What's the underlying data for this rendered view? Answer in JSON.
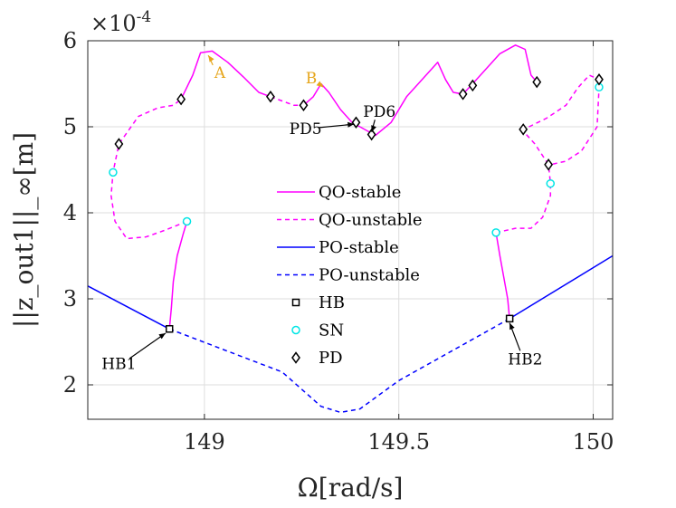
{
  "chart_data": {
    "type": "line",
    "xlabel": "Ω[rad/s]",
    "ylabel": "||z_out1||_∞[m]",
    "y_multiplier_label": "×10",
    "y_multiplier_exp": "-4",
    "xlim": [
      148.7,
      150.05
    ],
    "ylim": [
      1.6,
      6.0
    ],
    "xticks": [
      149,
      149.5,
      150
    ],
    "xtick_labels": [
      "149",
      "149.5",
      "150"
    ],
    "yticks": [
      2,
      3,
      4,
      5,
      6
    ],
    "ytick_labels": [
      "2",
      "3",
      "4",
      "5",
      "6"
    ],
    "grid": true,
    "legend_position": "center",
    "colors": {
      "qo": "#ff00ff",
      "po": "#0000ff",
      "sn": "#00e5e5",
      "marker": "#000000",
      "annot_orange": "#e6a51a",
      "annot_black": "#000000"
    },
    "series": [
      {
        "name": "QO-stable",
        "style": "solid",
        "color": "#ff00ff",
        "segments": [
          [
            [
              148.91,
              2.65
            ],
            [
              148.915,
              2.9
            ],
            [
              148.92,
              3.2
            ],
            [
              148.93,
              3.5
            ],
            [
              148.945,
              3.75
            ],
            [
              148.955,
              3.9
            ]
          ],
          [
            [
              148.94,
              5.32
            ],
            [
              148.97,
              5.6
            ],
            [
              148.99,
              5.86
            ],
            [
              149.02,
              5.88
            ],
            [
              149.06,
              5.75
            ],
            [
              149.1,
              5.58
            ],
            [
              149.14,
              5.4
            ],
            [
              149.17,
              5.35
            ]
          ],
          [
            [
              149.255,
              5.25
            ],
            [
              149.28,
              5.35
            ],
            [
              149.3,
              5.5
            ],
            [
              149.32,
              5.4
            ],
            [
              149.35,
              5.2
            ],
            [
              149.38,
              5.05
            ],
            [
              149.4,
              5.0
            ],
            [
              149.44,
              4.9
            ],
            [
              149.48,
              5.05
            ],
            [
              149.52,
              5.35
            ],
            [
              149.56,
              5.55
            ],
            [
              149.6,
              5.75
            ],
            [
              149.62,
              5.55
            ],
            [
              149.64,
              5.4
            ],
            [
              149.665,
              5.38
            ],
            [
              149.69,
              5.5
            ],
            [
              149.72,
              5.65
            ],
            [
              149.76,
              5.85
            ],
            [
              149.8,
              5.95
            ],
            [
              149.825,
              5.9
            ],
            [
              149.84,
              5.6
            ],
            [
              149.855,
              5.52
            ]
          ],
          [
            [
              149.785,
              2.77
            ],
            [
              149.78,
              3.0
            ],
            [
              149.77,
              3.25
            ],
            [
              149.76,
              3.5
            ],
            [
              149.75,
              3.77
            ]
          ]
        ]
      },
      {
        "name": "QO-unstable",
        "style": "dashed",
        "color": "#ff00ff",
        "segments": [
          [
            [
              148.955,
              3.9
            ],
            [
              148.9,
              3.8
            ],
            [
              148.85,
              3.72
            ],
            [
              148.8,
              3.7
            ],
            [
              148.77,
              3.9
            ],
            [
              148.76,
              4.2
            ],
            [
              148.765,
              4.47
            ],
            [
              148.78,
              4.8
            ],
            [
              148.83,
              5.12
            ],
            [
              148.88,
              5.22
            ],
            [
              148.92,
              5.25
            ],
            [
              148.94,
              5.32
            ]
          ],
          [
            [
              149.17,
              5.35
            ],
            [
              149.2,
              5.3
            ],
            [
              149.23,
              5.25
            ],
            [
              149.255,
              5.25
            ]
          ],
          [
            [
              149.75,
              3.77
            ],
            [
              149.8,
              3.82
            ],
            [
              149.84,
              3.82
            ],
            [
              149.87,
              3.95
            ],
            [
              149.89,
              4.2
            ],
            [
              149.89,
              4.34
            ],
            [
              149.885,
              4.56
            ],
            [
              149.85,
              4.8
            ],
            [
              149.82,
              4.95
            ],
            [
              149.835,
              5.0
            ],
            [
              149.88,
              5.1
            ],
            [
              149.93,
              5.25
            ],
            [
              149.96,
              5.45
            ],
            [
              149.99,
              5.6
            ],
            [
              150.015,
              5.55
            ],
            [
              150.015,
              5.46
            ],
            [
              150.01,
              5.0
            ],
            [
              149.97,
              4.72
            ],
            [
              149.93,
              4.6
            ],
            [
              149.89,
              4.56
            ]
          ]
        ]
      },
      {
        "name": "PO-stable",
        "style": "solid",
        "color": "#0000ff",
        "segments": [
          [
            [
              148.7,
              3.15
            ],
            [
              148.91,
              2.65
            ]
          ],
          [
            [
              149.785,
              2.77
            ],
            [
              150.05,
              3.5
            ]
          ]
        ]
      },
      {
        "name": "PO-unstable",
        "style": "dashed",
        "color": "#0000ff",
        "segments": [
          [
            [
              148.91,
              2.65
            ],
            [
              149.2,
              2.15
            ],
            [
              149.3,
              1.75
            ],
            [
              149.35,
              1.68
            ],
            [
              149.4,
              1.72
            ],
            [
              149.5,
              2.05
            ],
            [
              149.785,
              2.77
            ]
          ]
        ]
      },
      {
        "name": "HB",
        "marker": "square",
        "points": [
          [
            148.91,
            2.65
          ],
          [
            149.785,
            2.77
          ]
        ]
      },
      {
        "name": "SN",
        "marker": "circle",
        "points": [
          [
            148.765,
            4.47
          ],
          [
            148.955,
            3.9
          ],
          [
            149.75,
            3.77
          ],
          [
            149.89,
            4.34
          ],
          [
            150.015,
            5.46
          ]
        ]
      },
      {
        "name": "PD",
        "marker": "diamond",
        "points": [
          [
            148.78,
            4.8
          ],
          [
            148.94,
            5.32
          ],
          [
            149.17,
            5.35
          ],
          [
            149.255,
            5.25
          ],
          [
            149.39,
            5.05
          ],
          [
            149.43,
            4.91
          ],
          [
            149.665,
            5.38
          ],
          [
            149.69,
            5.48
          ],
          [
            149.855,
            5.52
          ],
          [
            149.82,
            4.97
          ],
          [
            149.885,
            4.56
          ],
          [
            150.015,
            5.55
          ]
        ]
      }
    ],
    "annotations": [
      {
        "text": "A",
        "color": "#e6a51a",
        "x": 149.04,
        "y": 5.63,
        "arrow_to": [
          149.01,
          5.83
        ]
      },
      {
        "text": "B",
        "color": "#e6a51a",
        "x": 149.275,
        "y": 5.57,
        "arrow_to": [
          149.305,
          5.46
        ]
      },
      {
        "text": "PD5",
        "color": "#000000",
        "x": 149.26,
        "y": 4.98,
        "arrow_to": [
          149.385,
          5.03
        ]
      },
      {
        "text": "PD6",
        "color": "#000000",
        "x": 149.45,
        "y": 5.18,
        "arrow_to": [
          149.43,
          4.94
        ]
      },
      {
        "text": "HB1",
        "color": "#000000",
        "x": 148.78,
        "y": 2.25,
        "arrow_to": [
          148.9,
          2.6
        ]
      },
      {
        "text": "HB2",
        "color": "#000000",
        "x": 149.825,
        "y": 2.3,
        "arrow_to": [
          149.785,
          2.72
        ]
      }
    ]
  }
}
